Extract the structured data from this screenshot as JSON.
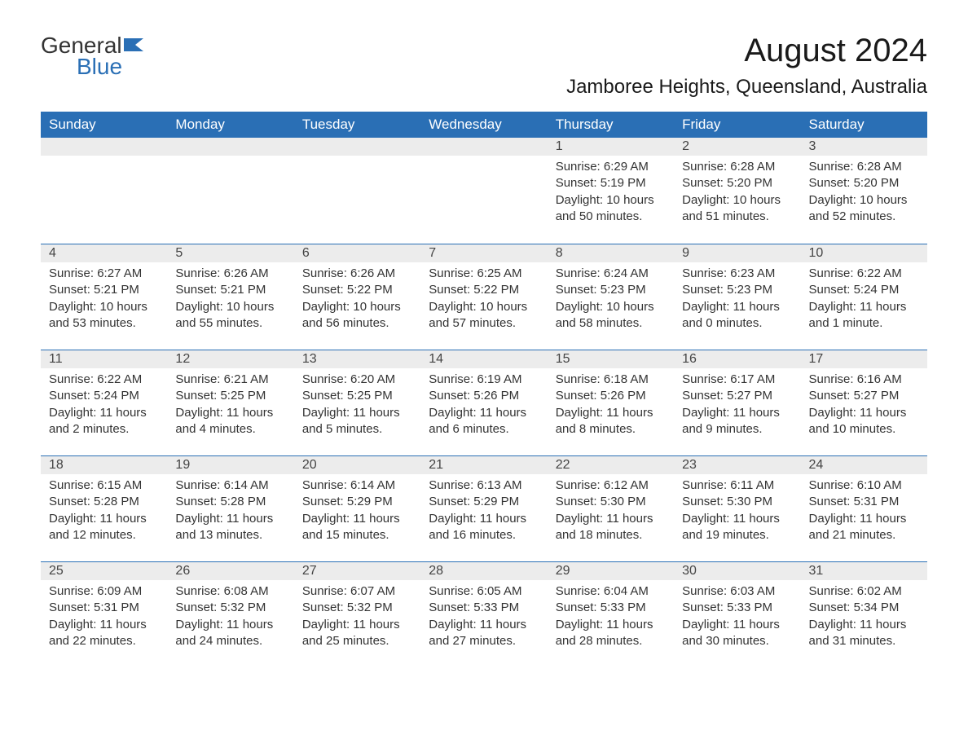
{
  "logo": {
    "text1": "General",
    "text2": "Blue"
  },
  "title": "August 2024",
  "location": "Jamboree Heights, Queensland, Australia",
  "colors": {
    "header_bg": "#2a6fb5",
    "header_text": "#ffffff",
    "daynum_bg": "#ececec",
    "border": "#2a6fb5",
    "body_text": "#333333",
    "page_bg": "#ffffff"
  },
  "day_headers": [
    "Sunday",
    "Monday",
    "Tuesday",
    "Wednesday",
    "Thursday",
    "Friday",
    "Saturday"
  ],
  "weeks": [
    [
      null,
      null,
      null,
      null,
      {
        "n": "1",
        "sr": "Sunrise: 6:29 AM",
        "ss": "Sunset: 5:19 PM",
        "dl": "Daylight: 10 hours and 50 minutes."
      },
      {
        "n": "2",
        "sr": "Sunrise: 6:28 AM",
        "ss": "Sunset: 5:20 PM",
        "dl": "Daylight: 10 hours and 51 minutes."
      },
      {
        "n": "3",
        "sr": "Sunrise: 6:28 AM",
        "ss": "Sunset: 5:20 PM",
        "dl": "Daylight: 10 hours and 52 minutes."
      }
    ],
    [
      {
        "n": "4",
        "sr": "Sunrise: 6:27 AM",
        "ss": "Sunset: 5:21 PM",
        "dl": "Daylight: 10 hours and 53 minutes."
      },
      {
        "n": "5",
        "sr": "Sunrise: 6:26 AM",
        "ss": "Sunset: 5:21 PM",
        "dl": "Daylight: 10 hours and 55 minutes."
      },
      {
        "n": "6",
        "sr": "Sunrise: 6:26 AM",
        "ss": "Sunset: 5:22 PM",
        "dl": "Daylight: 10 hours and 56 minutes."
      },
      {
        "n": "7",
        "sr": "Sunrise: 6:25 AM",
        "ss": "Sunset: 5:22 PM",
        "dl": "Daylight: 10 hours and 57 minutes."
      },
      {
        "n": "8",
        "sr": "Sunrise: 6:24 AM",
        "ss": "Sunset: 5:23 PM",
        "dl": "Daylight: 10 hours and 58 minutes."
      },
      {
        "n": "9",
        "sr": "Sunrise: 6:23 AM",
        "ss": "Sunset: 5:23 PM",
        "dl": "Daylight: 11 hours and 0 minutes."
      },
      {
        "n": "10",
        "sr": "Sunrise: 6:22 AM",
        "ss": "Sunset: 5:24 PM",
        "dl": "Daylight: 11 hours and 1 minute."
      }
    ],
    [
      {
        "n": "11",
        "sr": "Sunrise: 6:22 AM",
        "ss": "Sunset: 5:24 PM",
        "dl": "Daylight: 11 hours and 2 minutes."
      },
      {
        "n": "12",
        "sr": "Sunrise: 6:21 AM",
        "ss": "Sunset: 5:25 PM",
        "dl": "Daylight: 11 hours and 4 minutes."
      },
      {
        "n": "13",
        "sr": "Sunrise: 6:20 AM",
        "ss": "Sunset: 5:25 PM",
        "dl": "Daylight: 11 hours and 5 minutes."
      },
      {
        "n": "14",
        "sr": "Sunrise: 6:19 AM",
        "ss": "Sunset: 5:26 PM",
        "dl": "Daylight: 11 hours and 6 minutes."
      },
      {
        "n": "15",
        "sr": "Sunrise: 6:18 AM",
        "ss": "Sunset: 5:26 PM",
        "dl": "Daylight: 11 hours and 8 minutes."
      },
      {
        "n": "16",
        "sr": "Sunrise: 6:17 AM",
        "ss": "Sunset: 5:27 PM",
        "dl": "Daylight: 11 hours and 9 minutes."
      },
      {
        "n": "17",
        "sr": "Sunrise: 6:16 AM",
        "ss": "Sunset: 5:27 PM",
        "dl": "Daylight: 11 hours and 10 minutes."
      }
    ],
    [
      {
        "n": "18",
        "sr": "Sunrise: 6:15 AM",
        "ss": "Sunset: 5:28 PM",
        "dl": "Daylight: 11 hours and 12 minutes."
      },
      {
        "n": "19",
        "sr": "Sunrise: 6:14 AM",
        "ss": "Sunset: 5:28 PM",
        "dl": "Daylight: 11 hours and 13 minutes."
      },
      {
        "n": "20",
        "sr": "Sunrise: 6:14 AM",
        "ss": "Sunset: 5:29 PM",
        "dl": "Daylight: 11 hours and 15 minutes."
      },
      {
        "n": "21",
        "sr": "Sunrise: 6:13 AM",
        "ss": "Sunset: 5:29 PM",
        "dl": "Daylight: 11 hours and 16 minutes."
      },
      {
        "n": "22",
        "sr": "Sunrise: 6:12 AM",
        "ss": "Sunset: 5:30 PM",
        "dl": "Daylight: 11 hours and 18 minutes."
      },
      {
        "n": "23",
        "sr": "Sunrise: 6:11 AM",
        "ss": "Sunset: 5:30 PM",
        "dl": "Daylight: 11 hours and 19 minutes."
      },
      {
        "n": "24",
        "sr": "Sunrise: 6:10 AM",
        "ss": "Sunset: 5:31 PM",
        "dl": "Daylight: 11 hours and 21 minutes."
      }
    ],
    [
      {
        "n": "25",
        "sr": "Sunrise: 6:09 AM",
        "ss": "Sunset: 5:31 PM",
        "dl": "Daylight: 11 hours and 22 minutes."
      },
      {
        "n": "26",
        "sr": "Sunrise: 6:08 AM",
        "ss": "Sunset: 5:32 PM",
        "dl": "Daylight: 11 hours and 24 minutes."
      },
      {
        "n": "27",
        "sr": "Sunrise: 6:07 AM",
        "ss": "Sunset: 5:32 PM",
        "dl": "Daylight: 11 hours and 25 minutes."
      },
      {
        "n": "28",
        "sr": "Sunrise: 6:05 AM",
        "ss": "Sunset: 5:33 PM",
        "dl": "Daylight: 11 hours and 27 minutes."
      },
      {
        "n": "29",
        "sr": "Sunrise: 6:04 AM",
        "ss": "Sunset: 5:33 PM",
        "dl": "Daylight: 11 hours and 28 minutes."
      },
      {
        "n": "30",
        "sr": "Sunrise: 6:03 AM",
        "ss": "Sunset: 5:33 PM",
        "dl": "Daylight: 11 hours and 30 minutes."
      },
      {
        "n": "31",
        "sr": "Sunrise: 6:02 AM",
        "ss": "Sunset: 5:34 PM",
        "dl": "Daylight: 11 hours and 31 minutes."
      }
    ]
  ]
}
